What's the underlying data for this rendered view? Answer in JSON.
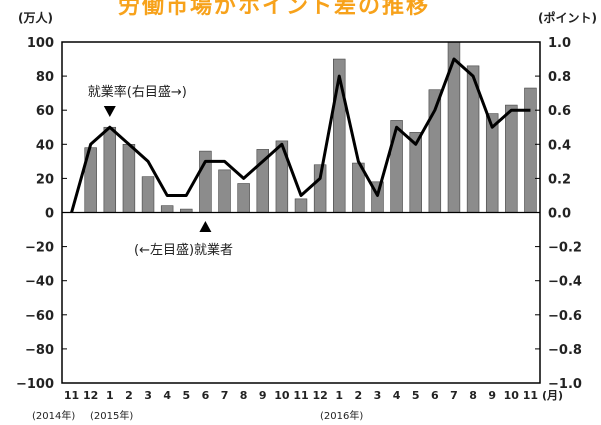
{
  "chart_data": {
    "type": "bar",
    "title": "",
    "left_unit": "(万人)",
    "right_unit": "(ポイント)",
    "month_unit": "(月)",
    "categories": [
      "11",
      "12",
      "1",
      "2",
      "3",
      "4",
      "5",
      "6",
      "7",
      "8",
      "9",
      "10",
      "11",
      "12",
      "1",
      "2",
      "3",
      "4",
      "5",
      "6",
      "7",
      "8",
      "9",
      "10",
      "11"
    ],
    "year_labels": [
      "(2014年)",
      "(2015年)",
      "(2016年)"
    ],
    "left_axis": {
      "ylim": [
        -100,
        100
      ],
      "ticks": [
        "100",
        "80",
        "60",
        "40",
        "20",
        "0",
        "−20",
        "−40",
        "−60",
        "−80",
        "−100"
      ]
    },
    "right_axis": {
      "ylim": [
        -1.0,
        1.0
      ],
      "ticks": [
        "1.0",
        "0.8",
        "0.6",
        "0.4",
        "0.2",
        "0.0",
        "−0.2",
        "−0.4",
        "−0.6",
        "−0.8",
        "−1.0"
      ]
    },
    "series": [
      {
        "name": "(←左目盛)就業者",
        "kind": "bar",
        "axis": "left",
        "color": "#8c8c8c",
        "values": [
          0,
          38,
          50,
          40,
          21,
          4,
          2,
          36,
          25,
          17,
          37,
          42,
          8,
          28,
          90,
          29,
          18,
          54,
          47,
          72,
          100,
          86,
          58,
          63,
          73
        ]
      },
      {
        "name": "就業率(右目盛→)",
        "kind": "line",
        "axis": "right",
        "color": "#000000",
        "values": [
          0.0,
          0.4,
          0.5,
          0.4,
          0.3,
          0.1,
          0.1,
          0.3,
          0.3,
          0.2,
          0.3,
          0.4,
          0.1,
          0.2,
          0.8,
          0.3,
          0.1,
          0.5,
          0.4,
          0.6,
          0.9,
          0.8,
          0.5,
          0.6,
          0.6
        ]
      }
    ],
    "annotations": [
      {
        "text": "就業率(右目盛→)",
        "arrow": "down",
        "index": 2,
        "series": 1
      },
      {
        "text": "(←左目盛)就業者",
        "arrow": "up",
        "index": 7,
        "series": 0
      }
    ],
    "title_partial": "労働市場がホイント差の推移"
  }
}
